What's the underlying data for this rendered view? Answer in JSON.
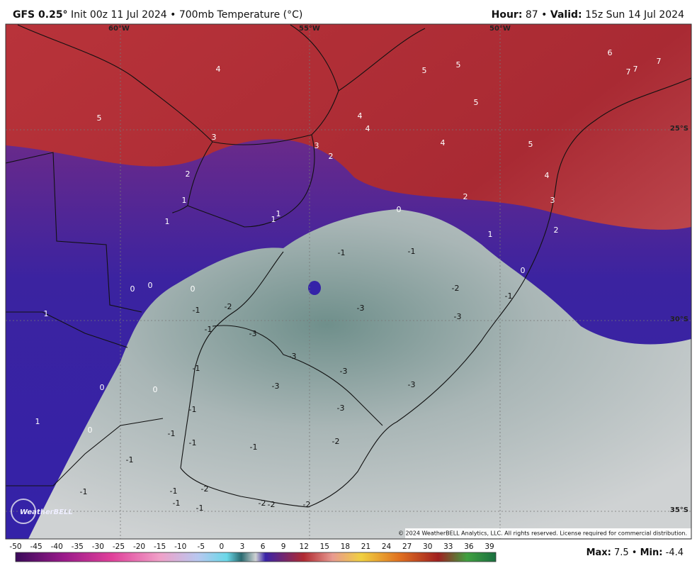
{
  "header": {
    "model": "GFS 0.25°",
    "description": "Init 00z 11 Jul 2024 • 700mb Temperature (°C)",
    "hour_label": "Hour:",
    "hour_value": "87 •",
    "valid_label": "Valid:",
    "valid_value": "15z Sun 14 Jul 2024"
  },
  "map": {
    "longitudes": [
      "60°W",
      "55°W",
      "50°W"
    ],
    "latitudes": [
      "25°S",
      "30°S",
      "35°S"
    ],
    "contour_labels": [
      4,
      5,
      3,
      2,
      1,
      1,
      1,
      1,
      3,
      2,
      4,
      4,
      5,
      5,
      5,
      4,
      5,
      6,
      7,
      7,
      7,
      4,
      3,
      2,
      2,
      1,
      0,
      0,
      -1,
      -1,
      -2,
      -3,
      -3,
      -1,
      0,
      0,
      0,
      -1,
      -2,
      -1,
      -3,
      -3,
      -3,
      -3,
      -3,
      -3,
      -1,
      -1,
      -1,
      -1,
      -1,
      -2,
      -1,
      -1,
      -1,
      -1,
      -1,
      -2,
      -2,
      -2,
      -2,
      1,
      0,
      0,
      1,
      0
    ],
    "copyright": "© 2024 WeatherBELL Analytics, LLC. All rights reserved. License required for commercial distribution.",
    "logo": "WeatherBELL"
  },
  "colorbar": {
    "labels": [
      -50,
      -45,
      -40,
      -35,
      -30,
      -25,
      -20,
      -15,
      -10,
      -5,
      0,
      3,
      6,
      9,
      12,
      15,
      18,
      21,
      24,
      27,
      30,
      33,
      36,
      39
    ]
  },
  "footer": {
    "max_label": "Max:",
    "max_value": "7.5 •",
    "min_label": "Min:",
    "min_value": "-4.4"
  }
}
